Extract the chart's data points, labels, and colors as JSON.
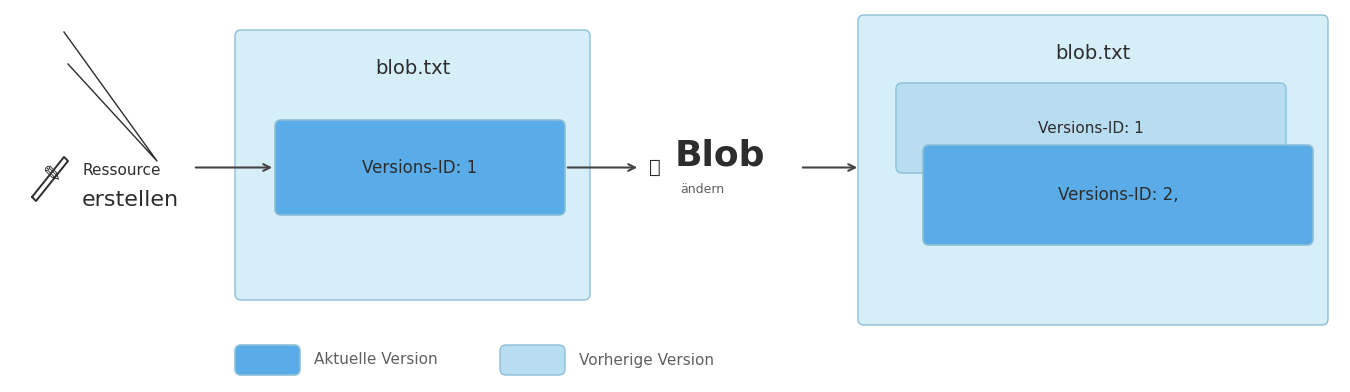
{
  "bg_color": "#ffffff",
  "light_blue_box": "#d6eef8",
  "medium_blue_box": "#5aace8",
  "prev_version_box": "#b8ddf0",
  "box_border_color": "#8bbfd8",
  "prev_border_color": "#8bbfd8",
  "text_dark": "#2d2d2d",
  "text_gray": "#606060",
  "blob_title": "blob.txt",
  "version1_label": "Versions-ID: 1",
  "version2_label": "Versions-ID: 2,",
  "action1_line1": "Ressource",
  "action1_line2": "erstellen",
  "action2_main": "Blob",
  "action2_sub": "ändern",
  "legend_current": "Aktuelle Version",
  "legend_previous": "Vorherige Version",
  "arrow_color": "#444444"
}
